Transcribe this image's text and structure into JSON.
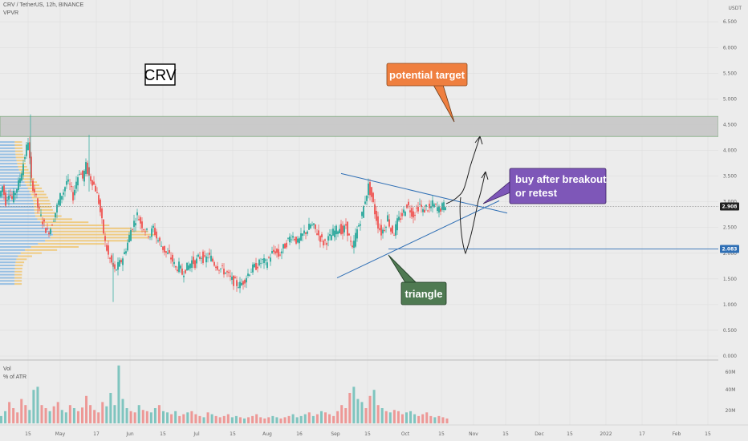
{
  "header": {
    "symbol_line": "CRV / TetherUS, 12h, BINANCE",
    "indicator": "VPVR",
    "currency": "USDT"
  },
  "volume_pane": {
    "label": "Vol",
    "sublabel": "% of ATR",
    "ticks": [
      "60M",
      "40M",
      "20M"
    ]
  },
  "chart_data": {
    "type": "candlestick",
    "y_ticks": [
      "6.500",
      "6.000",
      "5.500",
      "5.000",
      "4.500",
      "4.000",
      "3.500",
      "3.000",
      "2.500",
      "2.000",
      "1.500",
      "1.000",
      "0.500",
      "0.000"
    ],
    "ylim": [
      0,
      6.8
    ],
    "x_ticks": [
      "15",
      "May",
      "17",
      "Jun",
      "15",
      "Jul",
      "15",
      "Aug",
      "16",
      "Sep",
      "15",
      "Oct",
      "15",
      "Nov",
      "15",
      "Dec",
      "15",
      "2022",
      "17",
      "Feb",
      "15"
    ],
    "price_levels": [
      {
        "value": 2.908,
        "label": "2.908",
        "color": "#222222"
      },
      {
        "value": 2.083,
        "label": "2.083",
        "color": "#2f6fb5"
      }
    ],
    "resistance_zone": [
      4.27,
      4.66
    ],
    "path": [
      [
        0,
        3.1
      ],
      [
        4,
        3.3
      ],
      [
        8,
        3.0
      ],
      [
        12,
        3.2
      ],
      [
        16,
        3.05
      ],
      [
        20,
        3.2
      ],
      [
        24,
        3.35
      ],
      [
        28,
        3.6
      ],
      [
        32,
        3.9
      ],
      [
        36,
        4.2
      ],
      [
        40,
        3.4
      ],
      [
        44,
        3.2
      ],
      [
        48,
        2.9
      ],
      [
        52,
        2.7
      ],
      [
        56,
        2.55
      ],
      [
        60,
        2.4
      ],
      [
        64,
        2.5
      ],
      [
        68,
        2.7
      ],
      [
        72,
        2.9
      ],
      [
        76,
        3.1
      ],
      [
        80,
        3.2
      ],
      [
        84,
        3.4
      ],
      [
        88,
        3.3
      ],
      [
        92,
        3.1
      ],
      [
        96,
        3.4
      ],
      [
        100,
        3.6
      ],
      [
        104,
        3.45
      ],
      [
        108,
        3.7
      ],
      [
        112,
        3.5
      ],
      [
        116,
        3.4
      ],
      [
        120,
        3.25
      ],
      [
        124,
        3.0
      ],
      [
        128,
        2.6
      ],
      [
        132,
        2.2
      ],
      [
        136,
        1.95
      ],
      [
        140,
        1.8
      ],
      [
        144,
        1.65
      ],
      [
        148,
        1.75
      ],
      [
        152,
        1.85
      ],
      [
        156,
        2.0
      ],
      [
        160,
        2.2
      ],
      [
        164,
        2.45
      ],
      [
        168,
        2.6
      ],
      [
        172,
        2.75
      ],
      [
        176,
        2.6
      ],
      [
        180,
        2.5
      ],
      [
        184,
        2.4
      ],
      [
        188,
        2.35
      ],
      [
        192,
        2.5
      ],
      [
        196,
        2.3
      ],
      [
        200,
        2.2
      ],
      [
        204,
        2.1
      ],
      [
        208,
        2.0
      ],
      [
        212,
        1.95
      ],
      [
        216,
        1.85
      ],
      [
        220,
        1.7
      ],
      [
        224,
        1.75
      ],
      [
        228,
        1.6
      ],
      [
        232,
        1.7
      ],
      [
        236,
        1.75
      ],
      [
        240,
        1.85
      ],
      [
        244,
        1.8
      ],
      [
        248,
        1.9
      ],
      [
        252,
        1.95
      ],
      [
        256,
        1.85
      ],
      [
        260,
        1.95
      ],
      [
        264,
        1.9
      ],
      [
        268,
        1.8
      ],
      [
        272,
        1.75
      ],
      [
        276,
        1.7
      ],
      [
        280,
        1.65
      ],
      [
        284,
        1.6
      ],
      [
        288,
        1.5
      ],
      [
        292,
        1.45
      ],
      [
        296,
        1.4
      ],
      [
        300,
        1.38
      ],
      [
        304,
        1.45
      ],
      [
        308,
        1.55
      ],
      [
        312,
        1.65
      ],
      [
        316,
        1.7
      ],
      [
        320,
        1.75
      ],
      [
        324,
        1.8
      ],
      [
        328,
        1.85
      ],
      [
        332,
        1.8
      ],
      [
        336,
        1.9
      ],
      [
        340,
        2.0
      ],
      [
        344,
        2.05
      ],
      [
        348,
        1.95
      ],
      [
        352,
        2.05
      ],
      [
        356,
        2.15
      ],
      [
        360,
        2.25
      ],
      [
        364,
        2.35
      ],
      [
        368,
        2.3
      ],
      [
        372,
        2.2
      ],
      [
        376,
        2.3
      ],
      [
        380,
        2.4
      ],
      [
        384,
        2.45
      ],
      [
        388,
        2.55
      ],
      [
        392,
        2.5
      ],
      [
        396,
        2.4
      ],
      [
        400,
        2.3
      ],
      [
        404,
        2.2
      ],
      [
        408,
        2.25
      ],
      [
        412,
        2.3
      ],
      [
        416,
        2.4
      ],
      [
        420,
        2.45
      ],
      [
        424,
        2.5
      ],
      [
        428,
        2.4
      ],
      [
        432,
        2.55
      ],
      [
        436,
        2.3
      ],
      [
        440,
        2.05
      ],
      [
        444,
        2.35
      ],
      [
        448,
        2.55
      ],
      [
        452,
        2.75
      ],
      [
        456,
        3.05
      ],
      [
        460,
        3.3
      ],
      [
        464,
        3.1
      ],
      [
        468,
        2.8
      ],
      [
        472,
        2.55
      ],
      [
        476,
        2.4
      ],
      [
        480,
        2.5
      ],
      [
        484,
        2.7
      ],
      [
        488,
        2.45
      ],
      [
        492,
        2.4
      ],
      [
        496,
        2.6
      ],
      [
        500,
        2.7
      ],
      [
        504,
        2.8
      ],
      [
        508,
        2.95
      ],
      [
        512,
        2.85
      ],
      [
        516,
        2.75
      ],
      [
        520,
        2.85
      ],
      [
        524,
        2.95
      ],
      [
        528,
        2.8
      ],
      [
        532,
        2.9
      ],
      [
        536,
        2.85
      ],
      [
        540,
        2.95
      ],
      [
        544,
        2.9
      ],
      [
        548,
        2.85
      ],
      [
        552,
        2.9
      ],
      [
        556,
        2.95
      ]
    ],
    "volume": [
      0.12,
      0.2,
      0.35,
      0.25,
      0.18,
      0.4,
      0.3,
      0.22,
      0.55,
      0.6,
      0.3,
      0.25,
      0.2,
      0.28,
      0.35,
      0.22,
      0.18,
      0.3,
      0.25,
      0.2,
      0.26,
      0.45,
      0.3,
      0.22,
      0.18,
      0.35,
      0.28,
      0.5,
      0.3,
      0.95,
      0.4,
      0.25,
      0.2,
      0.18,
      0.3,
      0.22,
      0.2,
      0.18,
      0.25,
      0.3,
      0.2,
      0.18,
      0.15,
      0.2,
      0.12,
      0.15,
      0.18,
      0.2,
      0.15,
      0.12,
      0.1,
      0.18,
      0.15,
      0.12,
      0.1,
      0.12,
      0.15,
      0.1,
      0.12,
      0.1,
      0.08,
      0.1,
      0.12,
      0.15,
      0.1,
      0.08,
      0.1,
      0.12,
      0.1,
      0.08,
      0.1,
      0.12,
      0.15,
      0.1,
      0.12,
      0.15,
      0.18,
      0.12,
      0.15,
      0.2,
      0.18,
      0.15,
      0.12,
      0.2,
      0.3,
      0.25,
      0.5,
      0.6,
      0.4,
      0.35,
      0.25,
      0.45,
      0.55,
      0.3,
      0.25,
      0.2,
      0.18,
      0.22,
      0.2,
      0.15,
      0.18,
      0.2,
      0.15,
      0.12,
      0.15,
      0.18,
      0.12,
      0.1,
      0.12,
      0.1,
      0.08
    ]
  },
  "annotations": {
    "crv_label": "CRV",
    "potential_target": "potential target",
    "buy_line1": "buy after breakout",
    "buy_line2": "or retest",
    "triangle": "triangle"
  },
  "colors": {
    "background": "#ececec",
    "up": "#26a69a",
    "down": "#ef5350",
    "trendline": "#2f6fb5",
    "zone": "#c5c5c5",
    "vpvr_up": "#79b0e0",
    "vpvr_down": "#f0c060",
    "target_box": "#ef7f3f",
    "buy_box": "#7e57b8",
    "triangle_box": "#4f7a52"
  }
}
